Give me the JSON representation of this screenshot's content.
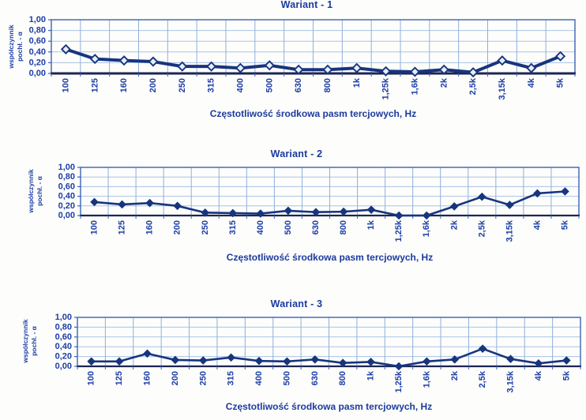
{
  "colors": {
    "line": "#17357e",
    "marker_fill": "#17357e",
    "marker_open_fill": "#e7edf9",
    "grid_horizontal": "#aac3e8",
    "grid_vertical": "#8fb0dc",
    "plot_border": "#3c62b8",
    "axis_line": "#1d2553",
    "text": "#1d3ea6",
    "title_text": "#1c3a9e"
  },
  "chart_data": [
    {
      "type": "line",
      "title": "Wariant - 1",
      "xlabel": "Częstotliwość środkowa pasm tercjowych, Hz",
      "ylabel_line1": "współczynnik",
      "ylabel_line2": "pochł. - α",
      "categories": [
        "100",
        "125",
        "160",
        "200",
        "250",
        "315",
        "400",
        "500",
        "630",
        "800",
        "1k",
        "1,25k",
        "1,6k",
        "2k",
        "2,5k",
        "3,15k",
        "4k",
        "5k"
      ],
      "values": [
        0.45,
        0.27,
        0.24,
        0.22,
        0.13,
        0.13,
        0.1,
        0.15,
        0.07,
        0.07,
        0.1,
        0.04,
        0.03,
        0.07,
        0.02,
        0.24,
        0.1,
        0.32
      ],
      "ylim": [
        0,
        1
      ],
      "ytick_labels": [
        "0,00",
        "0,20",
        "0,40",
        "0,60",
        "0,80",
        "1,00"
      ],
      "marker": "open-diamond",
      "grid": true,
      "legend": false
    },
    {
      "type": "line",
      "title": "Wariant - 2",
      "xlabel": "Częstotliwość środkowa pasm tercjowych, Hz",
      "ylabel_line1": "współczynnik",
      "ylabel_line2": "pochł. - α",
      "categories": [
        "100",
        "125",
        "160",
        "200",
        "250",
        "315",
        "400",
        "500",
        "630",
        "800",
        "1k",
        "1,25k",
        "1,6k",
        "2k",
        "2,5k",
        "3,15k",
        "4k",
        "5k"
      ],
      "values": [
        0.28,
        0.23,
        0.26,
        0.2,
        0.06,
        0.05,
        0.04,
        0.1,
        0.07,
        0.08,
        0.12,
        0.0,
        0.0,
        0.19,
        0.39,
        0.22,
        0.46,
        0.5
      ],
      "ylim": [
        0,
        1
      ],
      "ytick_labels": [
        "0,00",
        "0,20",
        "0,40",
        "0,60",
        "0,80",
        "1,00"
      ],
      "marker": "filled-diamond",
      "grid": true,
      "legend": false
    },
    {
      "type": "line",
      "title": "Wariant - 3",
      "xlabel": "Częstotliwość środkowa pasm tercjowych, Hz",
      "ylabel_line1": "współczynnik",
      "ylabel_line2": "pochł. - α",
      "categories": [
        "100",
        "125",
        "160",
        "200",
        "250",
        "315",
        "400",
        "500",
        "630",
        "800",
        "1k",
        "1,25k",
        "1,6k",
        "2k",
        "2,5k",
        "3,15k",
        "4k",
        "5k"
      ],
      "values": [
        0.1,
        0.1,
        0.26,
        0.13,
        0.12,
        0.18,
        0.11,
        0.1,
        0.14,
        0.07,
        0.09,
        0.0,
        0.1,
        0.14,
        0.36,
        0.15,
        0.06,
        0.12
      ],
      "ylim": [
        0,
        1
      ],
      "ytick_labels": [
        "0,00",
        "0,20",
        "0,40",
        "0,60",
        "0,80",
        "1,00"
      ],
      "marker": "filled-diamond",
      "grid": true,
      "legend": false
    }
  ]
}
